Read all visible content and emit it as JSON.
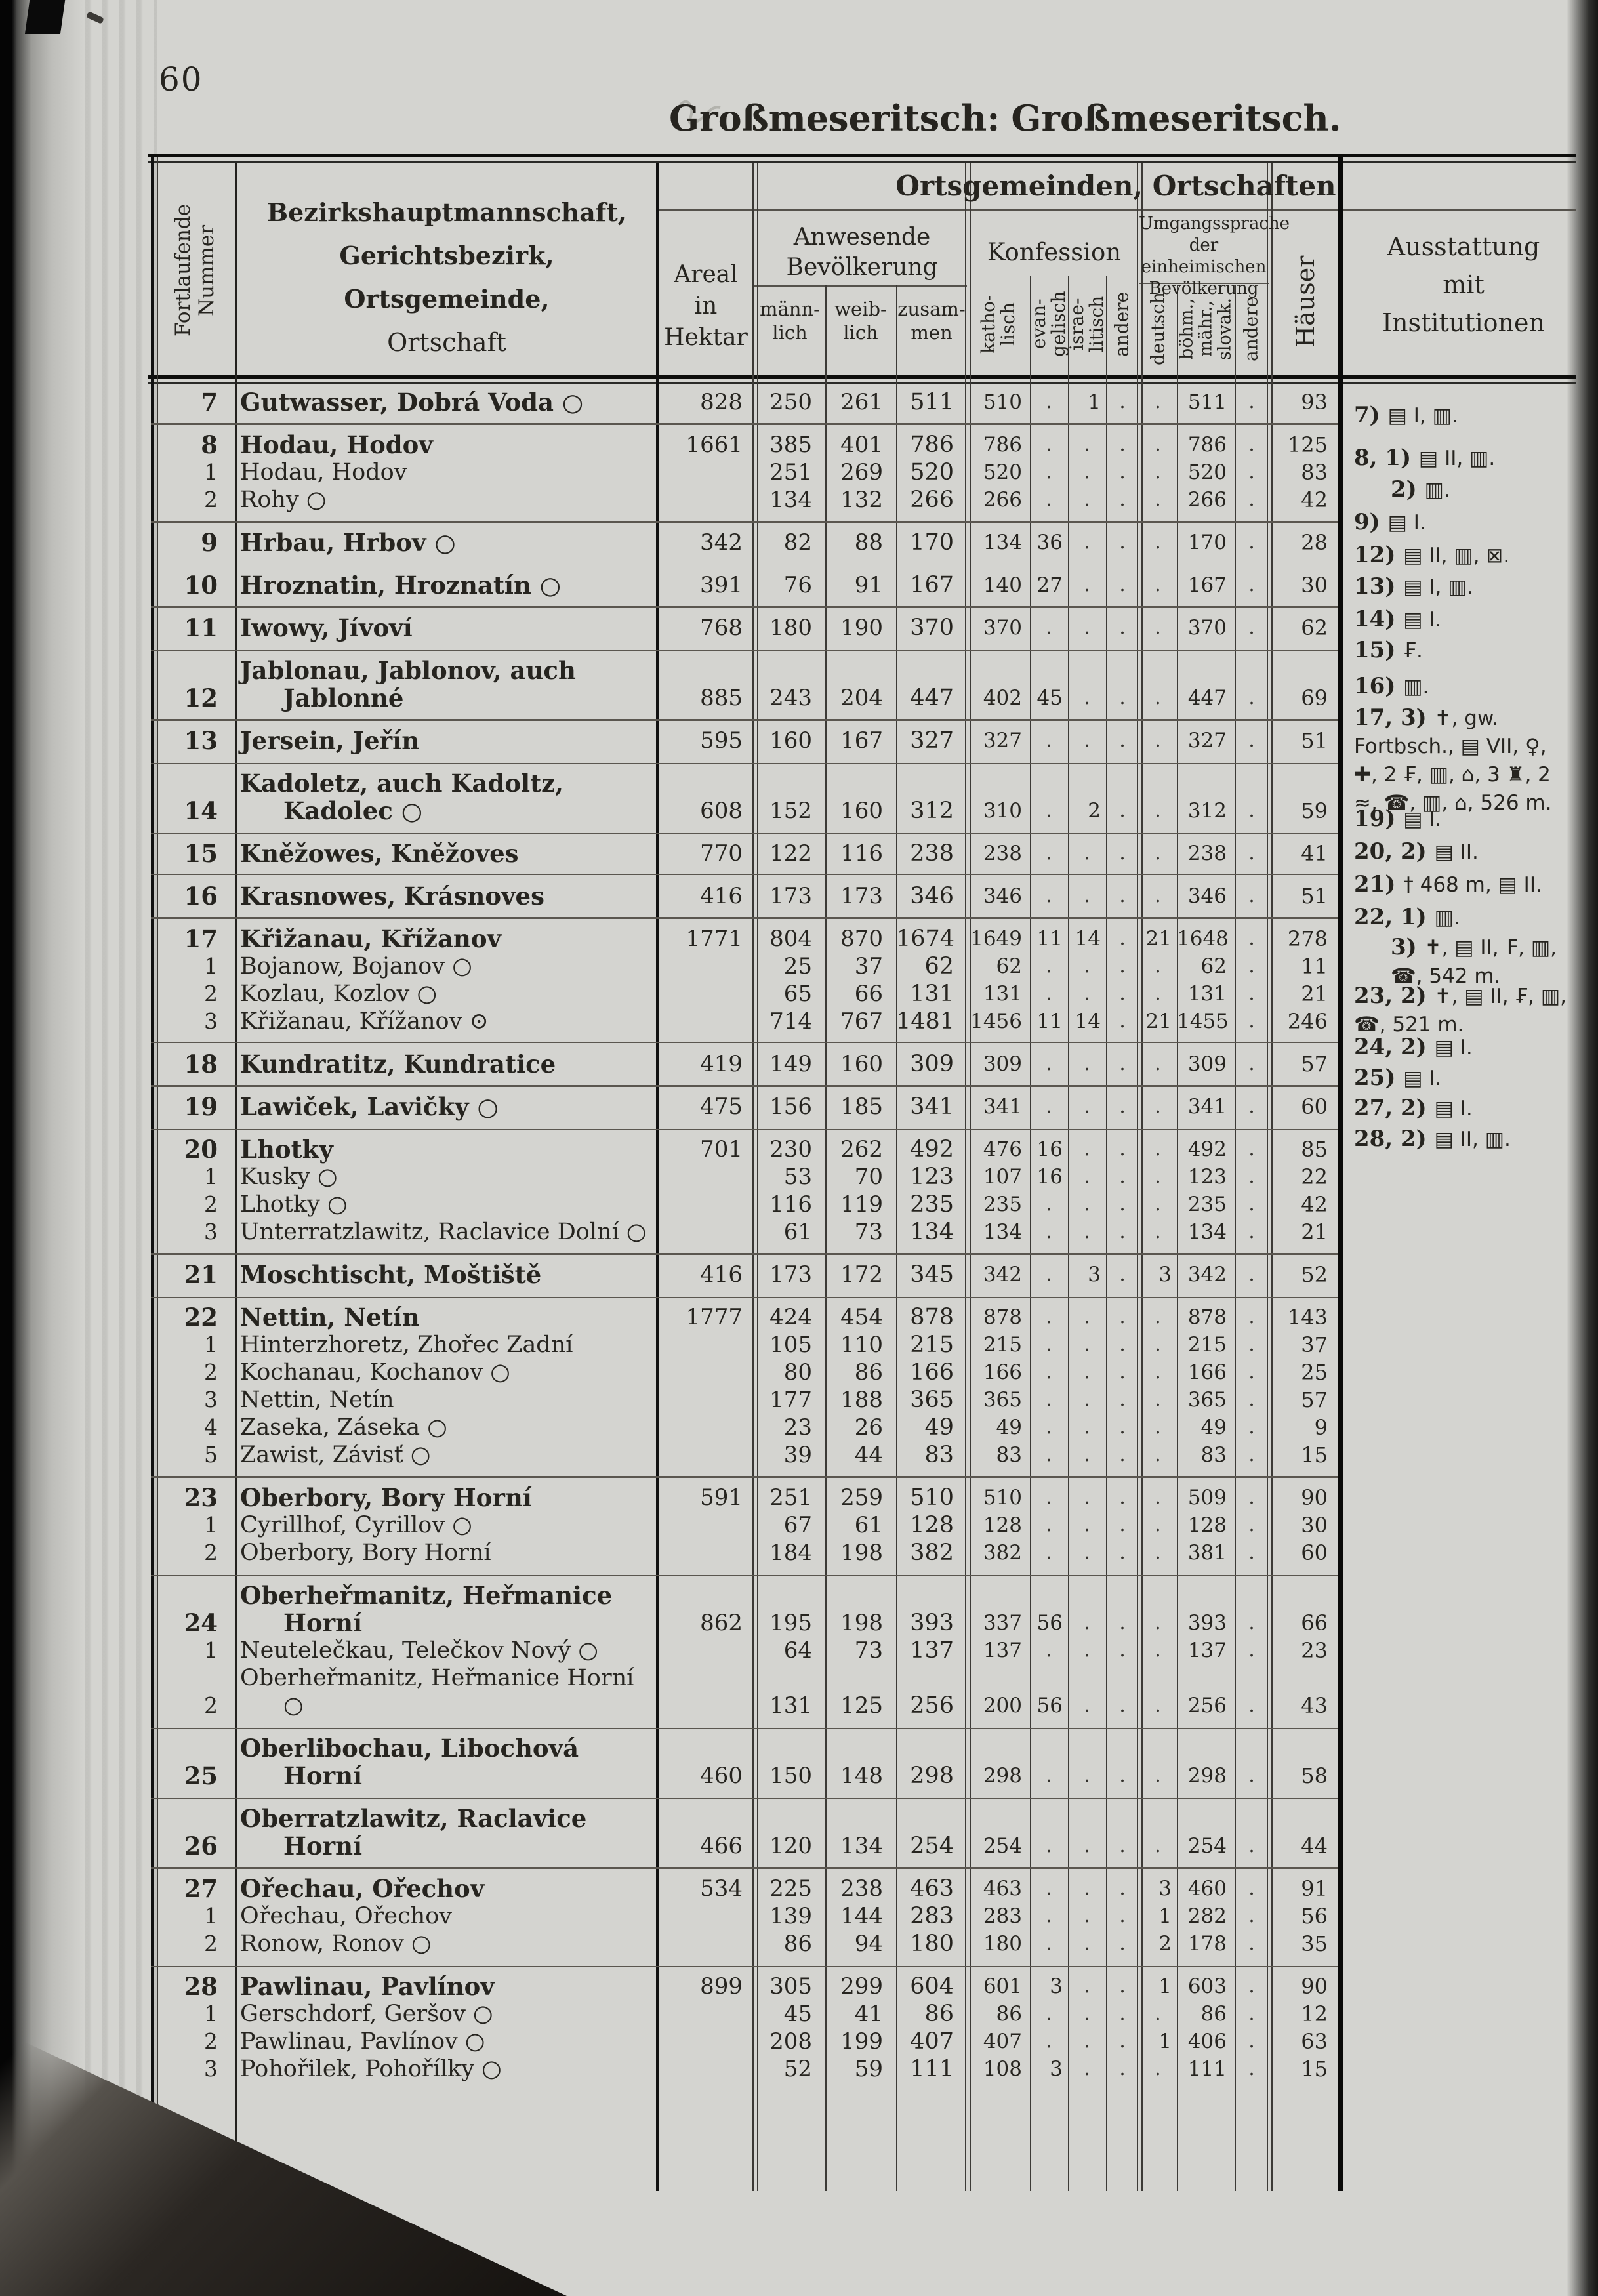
{
  "page": {
    "number": "60",
    "title_bold": "Großmeseritsch:",
    "title_rest": "Großmeseritsch."
  },
  "header": {
    "group_title": "Ortsgemeinden, Ortschaften",
    "fortlaufende": "Fortlaufende Nummer",
    "bezirk_lines": [
      "Bezirkshauptmannschaft,",
      "Gerichtsbezirk,",
      "Ortsgemeinde,",
      "Ortschaft"
    ],
    "areal": "Areal\nin\nHektar",
    "anwesende": "Anwesende\nBevölkerung",
    "pop_cols": [
      "männ-\nlich",
      "weib-\nlich",
      "zusam-\nmen"
    ],
    "konfession": "Konfession",
    "konf_cols": [
      "katho-\nlisch",
      "evan-\ngelisch",
      "israe-\nlitisch",
      "andere"
    ],
    "umgang": "Umgangssprache\nder einheimischen\nBevölkerung",
    "sprache_cols": [
      "deutsch",
      "böhm.,\nmähr.,\nslovak.",
      "andere"
    ],
    "haeuser": "Häuser",
    "ausstattung": "Ausstattung\nmit\nInstitutionen"
  },
  "groups": [
    {
      "num": "7",
      "rows": [
        {
          "sub": "",
          "name": "Gutwasser, Dobrá Voda ○",
          "hektar": "828",
          "ml": "250",
          "wl": "261",
          "zs": "511",
          "kath": "510",
          "evg": ".",
          "isr": "1",
          "ank": ".",
          "deu": ".",
          "boe": "511",
          "ans": ".",
          "hsr": "93"
        }
      ]
    },
    {
      "num": "8",
      "rows": [
        {
          "sub": "",
          "name": "Hodau, Hodov",
          "hektar": "1661",
          "ml": "385",
          "wl": "401",
          "zs": "786",
          "kath": "786",
          "evg": ".",
          "isr": ".",
          "ank": ".",
          "deu": ".",
          "boe": "786",
          "ans": ".",
          "hsr": "125"
        },
        {
          "sub": "1",
          "name": "Hodau, Hodov",
          "hektar": "",
          "ml": "251",
          "wl": "269",
          "zs": "520",
          "kath": "520",
          "evg": ".",
          "isr": ".",
          "ank": ".",
          "deu": ".",
          "boe": "520",
          "ans": ".",
          "hsr": "83"
        },
        {
          "sub": "2",
          "name": "Rohy ○",
          "hektar": "",
          "ml": "134",
          "wl": "132",
          "zs": "266",
          "kath": "266",
          "evg": ".",
          "isr": ".",
          "ank": ".",
          "deu": ".",
          "boe": "266",
          "ans": ".",
          "hsr": "42"
        }
      ]
    },
    {
      "num": "9",
      "rows": [
        {
          "sub": "",
          "name": "Hrbau, Hrbov ○",
          "hektar": "342",
          "ml": "82",
          "wl": "88",
          "zs": "170",
          "kath": "134",
          "evg": "36",
          "isr": ".",
          "ank": ".",
          "deu": ".",
          "boe": "170",
          "ans": ".",
          "hsr": "28"
        }
      ]
    },
    {
      "num": "10",
      "rows": [
        {
          "sub": "",
          "name": "Hroznatin, Hroznatín ○",
          "hektar": "391",
          "ml": "76",
          "wl": "91",
          "zs": "167",
          "kath": "140",
          "evg": "27",
          "isr": ".",
          "ank": ".",
          "deu": ".",
          "boe": "167",
          "ans": ".",
          "hsr": "30"
        }
      ]
    },
    {
      "num": "11",
      "rows": [
        {
          "sub": "",
          "name": "Iwowy, Jívoví",
          "hektar": "768",
          "ml": "180",
          "wl": "190",
          "zs": "370",
          "kath": "370",
          "evg": ".",
          "isr": ".",
          "ank": ".",
          "deu": ".",
          "boe": "370",
          "ans": ".",
          "hsr": "62"
        }
      ]
    },
    {
      "num": "12",
      "rows": [
        {
          "sub": "",
          "name": "Jablonau, Jablonov, auch Jablonné",
          "hektar": "885",
          "ml": "243",
          "wl": "204",
          "zs": "447",
          "kath": "402",
          "evg": "45",
          "isr": ".",
          "ank": ".",
          "deu": ".",
          "boe": "447",
          "ans": ".",
          "hsr": "69"
        }
      ]
    },
    {
      "num": "13",
      "rows": [
        {
          "sub": "",
          "name": "Jersein, Jeřín",
          "hektar": "595",
          "ml": "160",
          "wl": "167",
          "zs": "327",
          "kath": "327",
          "evg": ".",
          "isr": ".",
          "ank": ".",
          "deu": ".",
          "boe": "327",
          "ans": ".",
          "hsr": "51"
        }
      ]
    },
    {
      "num": "14",
      "rows": [
        {
          "sub": "",
          "name": "Kadoletz, auch Kadoltz, Kadolec ○",
          "hektar": "608",
          "ml": "152",
          "wl": "160",
          "zs": "312",
          "kath": "310",
          "evg": ".",
          "isr": "2",
          "ank": ".",
          "deu": ".",
          "boe": "312",
          "ans": ".",
          "hsr": "59"
        }
      ]
    },
    {
      "num": "15",
      "rows": [
        {
          "sub": "",
          "name": "Kněžowes, Kněžoves",
          "hektar": "770",
          "ml": "122",
          "wl": "116",
          "zs": "238",
          "kath": "238",
          "evg": ".",
          "isr": ".",
          "ank": ".",
          "deu": ".",
          "boe": "238",
          "ans": ".",
          "hsr": "41"
        }
      ]
    },
    {
      "num": "16",
      "rows": [
        {
          "sub": "",
          "name": "Krasnowes, Krásnoves",
          "hektar": "416",
          "ml": "173",
          "wl": "173",
          "zs": "346",
          "kath": "346",
          "evg": ".",
          "isr": ".",
          "ank": ".",
          "deu": ".",
          "boe": "346",
          "ans": ".",
          "hsr": "51"
        }
      ]
    },
    {
      "num": "17",
      "rows": [
        {
          "sub": "",
          "name": "Křižanau, Křížanov",
          "hektar": "1771",
          "ml": "804",
          "wl": "870",
          "zs": "1674",
          "kath": "1649",
          "evg": "11",
          "isr": "14",
          "ank": ".",
          "deu": "21",
          "boe": "1648",
          "ans": ".",
          "hsr": "278"
        },
        {
          "sub": "1",
          "name": "Bojanow, Bojanov ○",
          "hektar": "",
          "ml": "25",
          "wl": "37",
          "zs": "62",
          "kath": "62",
          "evg": ".",
          "isr": ".",
          "ank": ".",
          "deu": ".",
          "boe": "62",
          "ans": ".",
          "hsr": "11"
        },
        {
          "sub": "2",
          "name": "Kozlau, Kozlov ○",
          "hektar": "",
          "ml": "65",
          "wl": "66",
          "zs": "131",
          "kath": "131",
          "evg": ".",
          "isr": ".",
          "ank": ".",
          "deu": ".",
          "boe": "131",
          "ans": ".",
          "hsr": "21"
        },
        {
          "sub": "3",
          "name": "Křižanau, Křížanov ⊙",
          "hektar": "",
          "ml": "714",
          "wl": "767",
          "zs": "1481",
          "kath": "1456",
          "evg": "11",
          "isr": "14",
          "ank": ".",
          "deu": "21",
          "boe": "1455",
          "ans": ".",
          "hsr": "246"
        }
      ]
    },
    {
      "num": "18",
      "rows": [
        {
          "sub": "",
          "name": "Kundratitz, Kundratice",
          "hektar": "419",
          "ml": "149",
          "wl": "160",
          "zs": "309",
          "kath": "309",
          "evg": ".",
          "isr": ".",
          "ank": ".",
          "deu": ".",
          "boe": "309",
          "ans": ".",
          "hsr": "57"
        }
      ]
    },
    {
      "num": "19",
      "rows": [
        {
          "sub": "",
          "name": "Lawiček, Lavičky ○",
          "hektar": "475",
          "ml": "156",
          "wl": "185",
          "zs": "341",
          "kath": "341",
          "evg": ".",
          "isr": ".",
          "ank": ".",
          "deu": ".",
          "boe": "341",
          "ans": ".",
          "hsr": "60"
        }
      ]
    },
    {
      "num": "20",
      "rows": [
        {
          "sub": "",
          "name": "Lhotky",
          "hektar": "701",
          "ml": "230",
          "wl": "262",
          "zs": "492",
          "kath": "476",
          "evg": "16",
          "isr": ".",
          "ank": ".",
          "deu": ".",
          "boe": "492",
          "ans": ".",
          "hsr": "85"
        },
        {
          "sub": "1",
          "name": "Kusky ○",
          "hektar": "",
          "ml": "53",
          "wl": "70",
          "zs": "123",
          "kath": "107",
          "evg": "16",
          "isr": ".",
          "ank": ".",
          "deu": ".",
          "boe": "123",
          "ans": ".",
          "hsr": "22"
        },
        {
          "sub": "2",
          "name": "Lhotky ○",
          "hektar": "",
          "ml": "116",
          "wl": "119",
          "zs": "235",
          "kath": "235",
          "evg": ".",
          "isr": ".",
          "ank": ".",
          "deu": ".",
          "boe": "235",
          "ans": ".",
          "hsr": "42"
        },
        {
          "sub": "3",
          "name": "Unterratzlawitz, Raclavice Dolní ○",
          "hektar": "",
          "ml": "61",
          "wl": "73",
          "zs": "134",
          "kath": "134",
          "evg": ".",
          "isr": ".",
          "ank": ".",
          "deu": ".",
          "boe": "134",
          "ans": ".",
          "hsr": "21"
        }
      ]
    },
    {
      "num": "21",
      "rows": [
        {
          "sub": "",
          "name": "Moschtischt, Moštiště",
          "hektar": "416",
          "ml": "173",
          "wl": "172",
          "zs": "345",
          "kath": "342",
          "evg": ".",
          "isr": "3",
          "ank": ".",
          "deu": "3",
          "boe": "342",
          "ans": ".",
          "hsr": "52"
        }
      ]
    },
    {
      "num": "22",
      "rows": [
        {
          "sub": "",
          "name": "Nettin, Netín",
          "hektar": "1777",
          "ml": "424",
          "wl": "454",
          "zs": "878",
          "kath": "878",
          "evg": ".",
          "isr": ".",
          "ank": ".",
          "deu": ".",
          "boe": "878",
          "ans": ".",
          "hsr": "143"
        },
        {
          "sub": "1",
          "name": "Hinterzhoretz, Zhořec Zadní",
          "hektar": "",
          "ml": "105",
          "wl": "110",
          "zs": "215",
          "kath": "215",
          "evg": ".",
          "isr": ".",
          "ank": ".",
          "deu": ".",
          "boe": "215",
          "ans": ".",
          "hsr": "37"
        },
        {
          "sub": "2",
          "name": "Kochanau, Kochanov ○",
          "hektar": "",
          "ml": "80",
          "wl": "86",
          "zs": "166",
          "kath": "166",
          "evg": ".",
          "isr": ".",
          "ank": ".",
          "deu": ".",
          "boe": "166",
          "ans": ".",
          "hsr": "25"
        },
        {
          "sub": "3",
          "name": "Nettin, Netín",
          "hektar": "",
          "ml": "177",
          "wl": "188",
          "zs": "365",
          "kath": "365",
          "evg": ".",
          "isr": ".",
          "ank": ".",
          "deu": ".",
          "boe": "365",
          "ans": ".",
          "hsr": "57"
        },
        {
          "sub": "4",
          "name": "Zaseka, Záseka ○",
          "hektar": "",
          "ml": "23",
          "wl": "26",
          "zs": "49",
          "kath": "49",
          "evg": ".",
          "isr": ".",
          "ank": ".",
          "deu": ".",
          "boe": "49",
          "ans": ".",
          "hsr": "9"
        },
        {
          "sub": "5",
          "name": "Zawist, Závisť ○",
          "hektar": "",
          "ml": "39",
          "wl": "44",
          "zs": "83",
          "kath": "83",
          "evg": ".",
          "isr": ".",
          "ank": ".",
          "deu": ".",
          "boe": "83",
          "ans": ".",
          "hsr": "15"
        }
      ]
    },
    {
      "num": "23",
      "rows": [
        {
          "sub": "",
          "name": "Oberbory, Bory Horní",
          "hektar": "591",
          "ml": "251",
          "wl": "259",
          "zs": "510",
          "kath": "510",
          "evg": ".",
          "isr": ".",
          "ank": ".",
          "deu": ".",
          "boe": "509",
          "ans": ".",
          "hsr": "90"
        },
        {
          "sub": "1",
          "name": "Cyrillhof, Cyrillov ○",
          "hektar": "",
          "ml": "67",
          "wl": "61",
          "zs": "128",
          "kath": "128",
          "evg": ".",
          "isr": ".",
          "ank": ".",
          "deu": ".",
          "boe": "128",
          "ans": ".",
          "hsr": "30"
        },
        {
          "sub": "2",
          "name": "Oberbory, Bory Horní",
          "hektar": "",
          "ml": "184",
          "wl": "198",
          "zs": "382",
          "kath": "382",
          "evg": ".",
          "isr": ".",
          "ank": ".",
          "deu": ".",
          "boe": "381",
          "ans": ".",
          "hsr": "60"
        }
      ]
    },
    {
      "num": "24",
      "rows": [
        {
          "sub": "",
          "name": "Oberheřmanitz, Heřmanice Horní",
          "hektar": "862",
          "ml": "195",
          "wl": "198",
          "zs": "393",
          "kath": "337",
          "evg": "56",
          "isr": ".",
          "ank": ".",
          "deu": ".",
          "boe": "393",
          "ans": ".",
          "hsr": "66"
        },
        {
          "sub": "1",
          "name": "Neutelečkau, Telečkov Nový ○",
          "hektar": "",
          "ml": "64",
          "wl": "73",
          "zs": "137",
          "kath": "137",
          "evg": ".",
          "isr": ".",
          "ank": ".",
          "deu": ".",
          "boe": "137",
          "ans": ".",
          "hsr": "23"
        },
        {
          "sub": "2",
          "name": "Oberheřmanitz, Heřmanice Horní ○",
          "hektar": "",
          "ml": "131",
          "wl": "125",
          "zs": "256",
          "kath": "200",
          "evg": "56",
          "isr": ".",
          "ank": ".",
          "deu": ".",
          "boe": "256",
          "ans": ".",
          "hsr": "43"
        }
      ]
    },
    {
      "num": "25",
      "rows": [
        {
          "sub": "",
          "name": "Oberlibochau, Libochová Horní",
          "hektar": "460",
          "ml": "150",
          "wl": "148",
          "zs": "298",
          "kath": "298",
          "evg": ".",
          "isr": ".",
          "ank": ".",
          "deu": ".",
          "boe": "298",
          "ans": ".",
          "hsr": "58"
        }
      ]
    },
    {
      "num": "26",
      "rows": [
        {
          "sub": "",
          "name": "Oberratzlawitz, Raclavice Horní",
          "hektar": "466",
          "ml": "120",
          "wl": "134",
          "zs": "254",
          "kath": "254",
          "evg": ".",
          "isr": ".",
          "ank": ".",
          "deu": ".",
          "boe": "254",
          "ans": ".",
          "hsr": "44"
        }
      ]
    },
    {
      "num": "27",
      "rows": [
        {
          "sub": "",
          "name": "Ořechau, Ořechov",
          "hektar": "534",
          "ml": "225",
          "wl": "238",
          "zs": "463",
          "kath": "463",
          "evg": ".",
          "isr": ".",
          "ank": ".",
          "deu": "3",
          "boe": "460",
          "ans": ".",
          "hsr": "91"
        },
        {
          "sub": "1",
          "name": "Ořechau, Ořechov",
          "hektar": "",
          "ml": "139",
          "wl": "144",
          "zs": "283",
          "kath": "283",
          "evg": ".",
          "isr": ".",
          "ank": ".",
          "deu": "1",
          "boe": "282",
          "ans": ".",
          "hsr": "56"
        },
        {
          "sub": "2",
          "name": "Ronow, Ronov ○",
          "hektar": "",
          "ml": "86",
          "wl": "94",
          "zs": "180",
          "kath": "180",
          "evg": ".",
          "isr": ".",
          "ank": ".",
          "deu": "2",
          "boe": "178",
          "ans": ".",
          "hsr": "35"
        }
      ]
    },
    {
      "num": "28",
      "rows": [
        {
          "sub": "",
          "name": "Pawlinau, Pavlínov",
          "hektar": "899",
          "ml": "305",
          "wl": "299",
          "zs": "604",
          "kath": "601",
          "evg": "3",
          "isr": ".",
          "ank": ".",
          "deu": "1",
          "boe": "603",
          "ans": ".",
          "hsr": "90"
        },
        {
          "sub": "1",
          "name": "Gerschdorf, Geršov ○",
          "hektar": "",
          "ml": "45",
          "wl": "41",
          "zs": "86",
          "kath": "86",
          "evg": ".",
          "isr": ".",
          "ank": ".",
          "deu": ".",
          "boe": "86",
          "ans": ".",
          "hsr": "12"
        },
        {
          "sub": "2",
          "name": "Pawlinau, Pavlínov ○",
          "hektar": "",
          "ml": "208",
          "wl": "199",
          "zs": "407",
          "kath": "407",
          "evg": ".",
          "isr": ".",
          "ank": ".",
          "deu": "1",
          "boe": "406",
          "ans": ".",
          "hsr": "63"
        },
        {
          "sub": "3",
          "name": "Pohořilek, Pohořílky ○",
          "hektar": "",
          "ml": "52",
          "wl": "59",
          "zs": "111",
          "kath": "108",
          "evg": "3",
          "isr": ".",
          "ank": ".",
          "deu": ".",
          "boe": "111",
          "ans": ".",
          "hsr": "15"
        }
      ]
    }
  ],
  "notes": [
    {
      "label": "7)",
      "text": "▤ I, ▥."
    },
    {
      "label": "8, 1)",
      "text": "▤ II, ▥."
    },
    {
      "label": "2)",
      "text": "▥.",
      "indent": true
    },
    {
      "label": "9)",
      "text": "▤ I."
    },
    {
      "label": "12)",
      "text": "▤ II, ▥, ⊠."
    },
    {
      "label": "13)",
      "text": "▤ I, ▥."
    },
    {
      "label": "14)",
      "text": "▤ I."
    },
    {
      "label": "15)",
      "text": "₣."
    },
    {
      "label": "16)",
      "text": "▥."
    },
    {
      "label": "17, 3)",
      "text": "✝, gw. Fortbsch., ▤ VII, ♀, ✚, 2 ₣, ▥, ⌂, 3 ♜, 2 ≈, ☎, ▥, ⌂, 526 m."
    },
    {
      "label": "19)",
      "text": "▤ I."
    },
    {
      "label": "20, 2)",
      "text": "▤ II."
    },
    {
      "label": "21)",
      "text": "† 468 m, ▤ II."
    },
    {
      "label": "22, 1)",
      "text": "▥."
    },
    {
      "label": "3)",
      "text": "✝, ▤ II, ₣, ▥, ☎, 542 m.",
      "indent": true
    },
    {
      "label": "23, 2)",
      "text": "✝, ▤ II, ₣, ▥, ☎, 521 m."
    },
    {
      "label": "24, 2)",
      "text": "▤ I."
    },
    {
      "label": "25)",
      "text": "▤ I."
    },
    {
      "label": "27, 2)",
      "text": "▤ I."
    },
    {
      "label": "28, 2)",
      "text": "▤ II, ▥."
    }
  ]
}
